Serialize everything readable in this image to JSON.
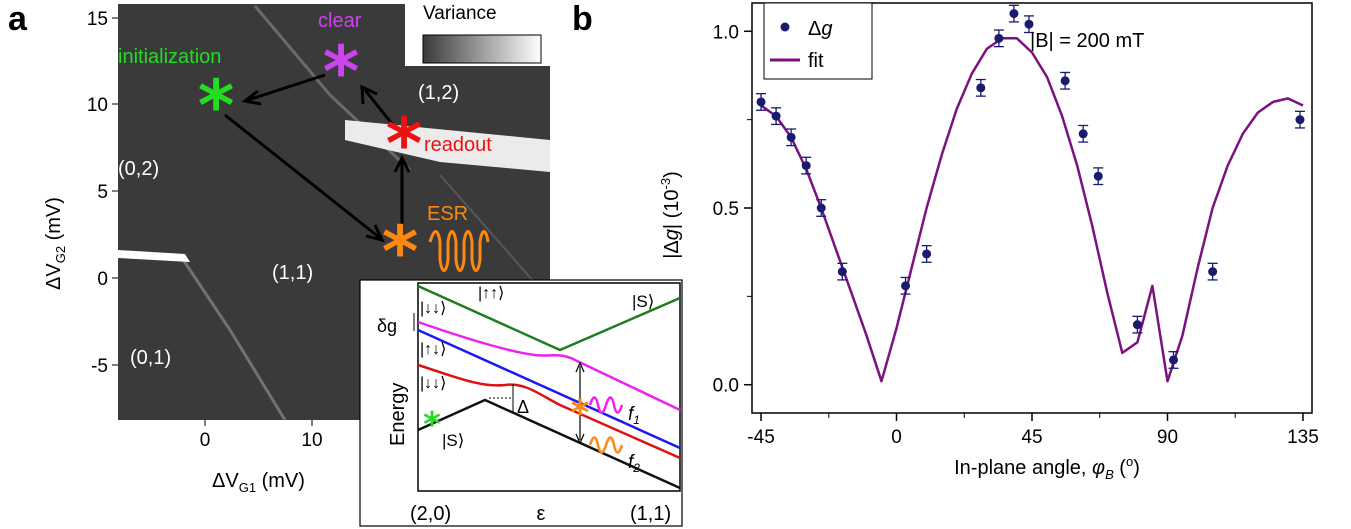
{
  "figure": {
    "panel_a_letter": "a",
    "panel_b_letter": "b"
  },
  "colors": {
    "green": "#22dd22",
    "purple": "#cc44ee",
    "red": "#ee1111",
    "orange": "#ff8811",
    "navy": "#1a1a6e",
    "fit": "#7b1280",
    "level_green": "#1e7d1e",
    "level_magenta": "#ee22ee",
    "level_blue": "#1a1aee",
    "level_red": "#dd1111",
    "level_black": "#111111"
  },
  "panel_a": {
    "xlabel_prefix": "ΔV",
    "xlabel_sub": "G1",
    "xlabel_unit": " (mV)",
    "ylabel_prefix": "ΔV",
    "ylabel_sub": "G2",
    "ylabel_unit": " (mV)",
    "xticks": [
      "0",
      "10"
    ],
    "yticks": [
      "15",
      "10",
      "5",
      "0",
      "-5"
    ],
    "colorbar_label": "Variance",
    "regions": [
      "(0,2)",
      "(1,1)",
      "(0,1)",
      "(1,2)"
    ],
    "markers": {
      "initialization": "initialization",
      "clear": "clear",
      "readout": "readout",
      "esr": "ESR"
    },
    "inset": {
      "ylabel": "Energy",
      "xlabel": "ε",
      "x_left": "(2,0)",
      "x_right": "(1,1)",
      "dg_label": "δg",
      "delta_label": "Δ",
      "f1": "f",
      "f1_sub": "1",
      "f2": "f",
      "f2_sub": "2",
      "states": [
        "|↓↓⟩",
        "|↑↑⟩",
        "|S⟩",
        "|↑↓⟩",
        "|↓↑⟩",
        "|↓↓⟩",
        "|S⟩"
      ]
    }
  },
  "chart_data": {
    "type": "scatter",
    "title": "",
    "annotation": "|B| = 200 mT",
    "xlabel": "In-plane angle, φ_B (°)",
    "ylabel": "|Δg| (10^-3)",
    "xlim": [
      -48,
      138
    ],
    "ylim": [
      -0.08,
      1.08
    ],
    "xticks": [
      -45,
      0,
      45,
      90,
      135
    ],
    "yticks": [
      0.0,
      0.5,
      1.0
    ],
    "xtick_labels": [
      "-45",
      "0",
      "45",
      "90",
      "135"
    ],
    "ytick_labels": [
      "0.0",
      "0.5",
      "1.0"
    ],
    "legend": {
      "placement": "top-left",
      "entries": [
        "Δg",
        "fit"
      ]
    },
    "series": [
      {
        "name": "Δg",
        "kind": "points",
        "x": [
          -45,
          -40,
          -35,
          -30,
          -25,
          -18,
          3,
          10,
          28,
          34,
          39,
          44,
          56,
          62,
          67,
          80,
          92,
          105,
          134
        ],
        "y": [
          0.8,
          0.76,
          0.7,
          0.62,
          0.5,
          0.32,
          0.28,
          0.37,
          0.84,
          0.98,
          1.05,
          1.02,
          0.86,
          0.71,
          0.59,
          0.17,
          0.07,
          0.32,
          0.75
        ],
        "err": [
          0.015,
          0.015,
          0.015,
          0.015,
          0.015,
          0.015,
          0.015,
          0.015,
          0.015,
          0.015,
          0.015,
          0.015,
          0.015,
          0.015,
          0.015,
          0.015,
          0.015,
          0.015,
          0.015
        ]
      },
      {
        "name": "fit",
        "kind": "line",
        "x": [
          -45,
          -40,
          -35,
          -30,
          -25,
          -20,
          -15,
          -10,
          -5,
          0,
          5,
          10,
          15,
          20,
          25,
          30,
          35,
          40,
          45,
          50,
          55,
          60,
          65,
          70,
          75,
          80,
          85,
          90,
          95,
          100,
          105,
          110,
          115,
          120,
          125,
          130,
          135
        ],
        "y": [
          0.79,
          0.76,
          0.7,
          0.61,
          0.5,
          0.38,
          0.26,
          0.14,
          0.01,
          0.16,
          0.33,
          0.5,
          0.65,
          0.78,
          0.88,
          0.95,
          0.98,
          0.98,
          0.94,
          0.87,
          0.76,
          0.62,
          0.45,
          0.26,
          0.09,
          0.12,
          0.28,
          0.01,
          0.14,
          0.33,
          0.5,
          0.62,
          0.71,
          0.77,
          0.8,
          0.81,
          0.79
        ]
      }
    ]
  }
}
